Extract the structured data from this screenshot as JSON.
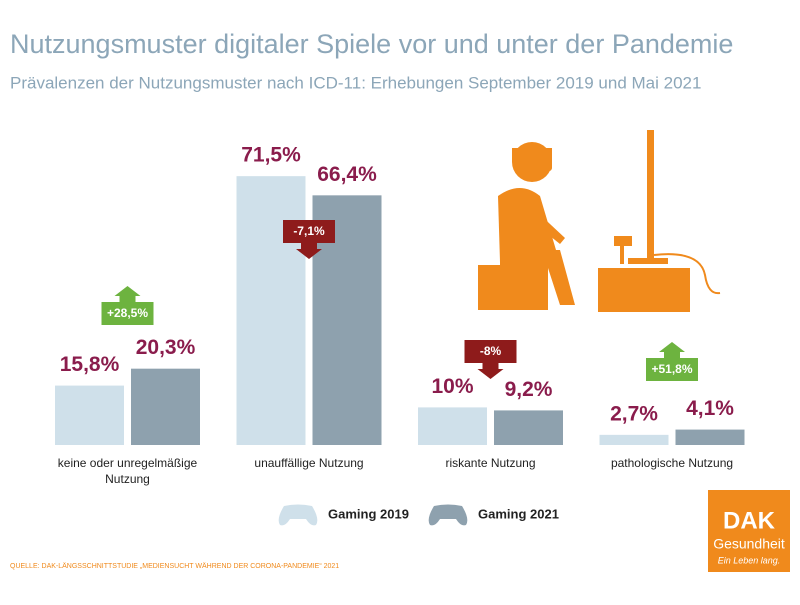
{
  "chart_data": {
    "type": "bar",
    "title": "Nutzungsmuster digitaler Spiele vor und unter der Pandemie",
    "subtitle": "Prävalenzen der Nutzungsmuster nach ICD-11: Erhebungen September 2019 und Mai 2021",
    "categories": [
      "keine oder unregelmäßige Nutzung",
      "unauffällige Nutzung",
      "riskante Nutzung",
      "pathologische Nutzung"
    ],
    "series": [
      {
        "name": "Gaming 2019",
        "color": "#cfe0ea",
        "values": [
          15.8,
          71.5,
          10,
          2.7
        ],
        "value_labels": [
          "15,8%",
          "71,5%",
          "10%",
          "2,7%"
        ]
      },
      {
        "name": "Gaming 2021",
        "color": "#8ea1ae",
        "values": [
          20.3,
          66.4,
          9.2,
          4.1
        ],
        "value_labels": [
          "20,3%",
          "66,4%",
          "9,2%",
          "4,1%"
        ]
      }
    ],
    "changes": [
      {
        "value": 28.5,
        "label": "+28,5%"
      },
      {
        "value": -7.1,
        "label": "-7,1%"
      },
      {
        "value": -8,
        "label": "-8%"
      },
      {
        "value": 51.8,
        "label": "+51,8%"
      }
    ],
    "value_label_color": "#8a1c4c",
    "source": "QUELLE: DAK-LÄNGSSCHNITTSTUDIE „MEDIENSUCHT WÄHREND DER CORONA-PANDEMIE“ 2021",
    "logo": {
      "name": "DAK",
      "subname": "Gesundheit",
      "slogan": "Ein Leben lang."
    }
  }
}
